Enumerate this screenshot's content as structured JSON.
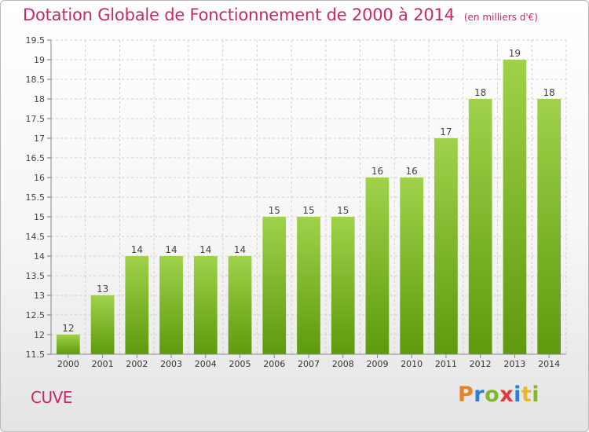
{
  "title": "Dotation Globale de Fonctionnement de 2000 à 2014",
  "subtitle": "(en milliers d'€)",
  "commune": "CUVE",
  "brand": {
    "letters": [
      "P",
      "r",
      "o",
      "x",
      "i",
      "t",
      "i"
    ],
    "colors": [
      "#e8822a",
      "#2a7fd4",
      "#7fb82a",
      "#e23a3a",
      "#2a7fd4",
      "#e8b82a",
      "#7fb82a"
    ]
  },
  "colors": {
    "title": "#c8286a",
    "bar_top": "#9fd24a",
    "bar_bottom": "#5e9a0e"
  },
  "chart_data": {
    "type": "bar",
    "categories": [
      "2000",
      "2001",
      "2002",
      "2003",
      "2004",
      "2005",
      "2006",
      "2007",
      "2008",
      "2009",
      "2010",
      "2011",
      "2012",
      "2013",
      "2014"
    ],
    "values": [
      12,
      13,
      14,
      14,
      14,
      14,
      15,
      15,
      15,
      16,
      16,
      17,
      18,
      19,
      18
    ],
    "data_labels": [
      "12",
      "13",
      "14",
      "14",
      "14",
      "14",
      "15",
      "15",
      "15",
      "16",
      "16",
      "17",
      "18",
      "19",
      "18"
    ],
    "ylim": [
      11.5,
      19.5
    ],
    "yticks": [
      "11.5",
      "12",
      "12.5",
      "13",
      "13.5",
      "14",
      "14.5",
      "15",
      "15.5",
      "16",
      "16.5",
      "17",
      "17.5",
      "18",
      "18.5",
      "19",
      "19.5"
    ],
    "grid": true,
    "legend": "none"
  }
}
